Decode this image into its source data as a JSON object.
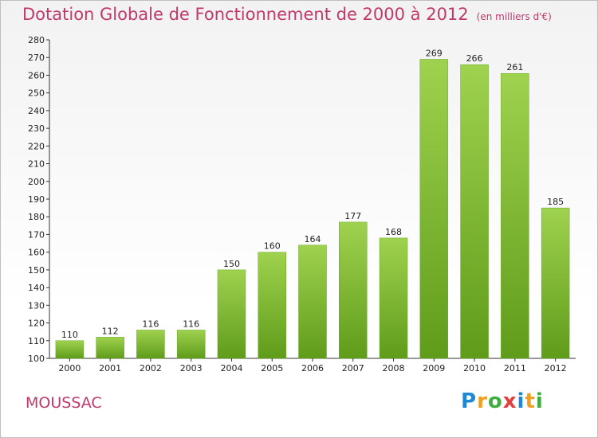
{
  "chart_data": {
    "type": "bar",
    "title": "Dotation Globale de Fonctionnement de 2000 à 2012",
    "subtitle": "(en milliers d'€)",
    "xlabel": "",
    "ylabel": "",
    "categories": [
      "2000",
      "2001",
      "2002",
      "2003",
      "2004",
      "2005",
      "2006",
      "2007",
      "2008",
      "2009",
      "2010",
      "2011",
      "2012"
    ],
    "values": [
      110,
      112,
      116,
      116,
      150,
      160,
      164,
      177,
      168,
      269,
      266,
      261,
      185
    ],
    "data_labels": [
      "110",
      "112",
      "116",
      "116",
      "150",
      "160",
      "164",
      "177",
      "168",
      "269",
      "266",
      "261",
      "185"
    ],
    "ylim": [
      100,
      280
    ],
    "yticks": [
      "100",
      "110",
      "120",
      "130",
      "140",
      "150",
      "160",
      "170",
      "180",
      "190",
      "200",
      "210",
      "220",
      "230",
      "240",
      "250",
      "260",
      "270",
      "280"
    ],
    "grid": false,
    "bar_color_top": "#9fd24e",
    "bar_color_bottom": "#5f9c1a"
  },
  "place_name": "MOUSSAC",
  "logo": {
    "letters": [
      "P",
      "r",
      "o",
      "x",
      "i",
      "t",
      "i"
    ],
    "colors": [
      "#1e88d6",
      "#f0a020",
      "#3fae3f",
      "#e04040",
      "#1e88d6",
      "#f0a020",
      "#3fae3f"
    ]
  }
}
